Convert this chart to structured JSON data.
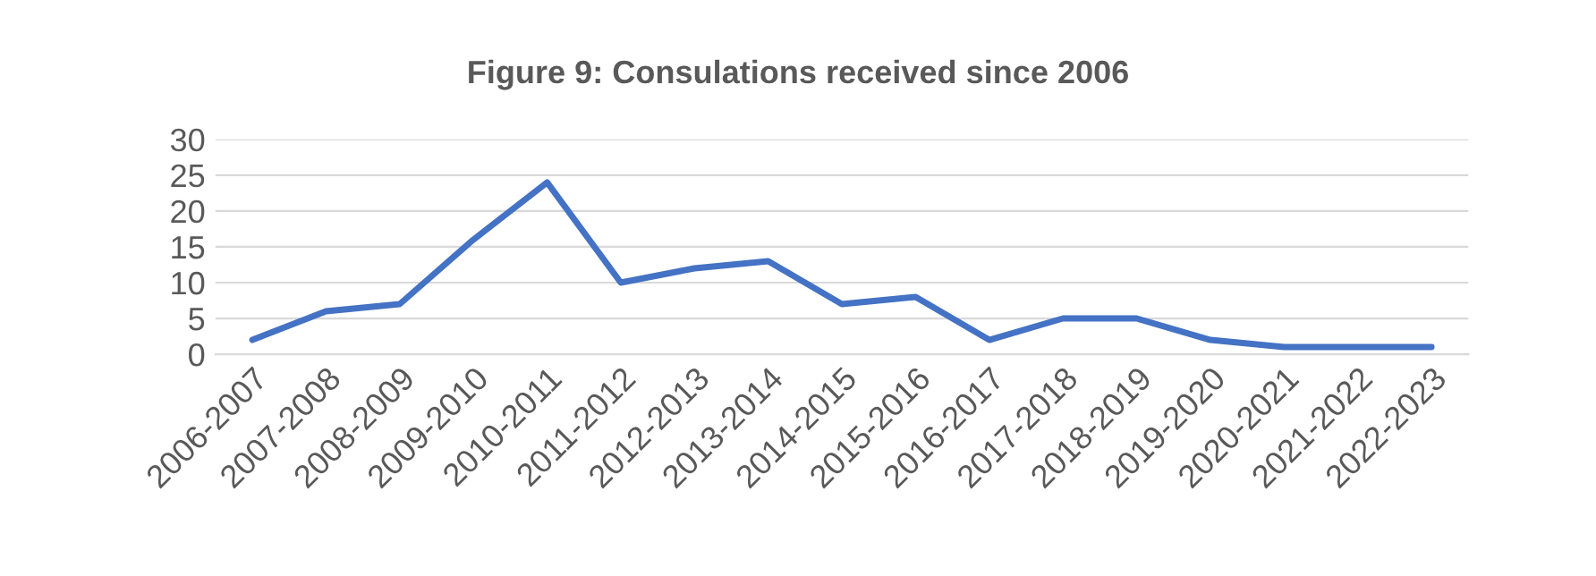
{
  "chart_data": {
    "type": "line",
    "title": "Figure 9: Consulations received since 2006",
    "categories": [
      "2006-2007",
      "2007-2008",
      "2008-2009",
      "2009-2010",
      "2010-2011",
      "2011-2012",
      "2012-2013",
      "2013-2014",
      "2014-2015",
      "2015-2016",
      "2016-2017",
      "2017-2018",
      "2018-2019",
      "2019-2020",
      "2020-2021",
      "2021-2022",
      "2022-2023"
    ],
    "values": [
      2,
      6,
      7,
      16,
      24,
      10,
      12,
      13,
      7,
      8,
      2,
      5,
      5,
      2,
      1,
      1,
      1
    ],
    "color": "#4472c4",
    "ylim": [
      0,
      30
    ],
    "yticks": [
      0,
      5,
      10,
      15,
      20,
      25,
      30
    ],
    "grid": "y"
  }
}
